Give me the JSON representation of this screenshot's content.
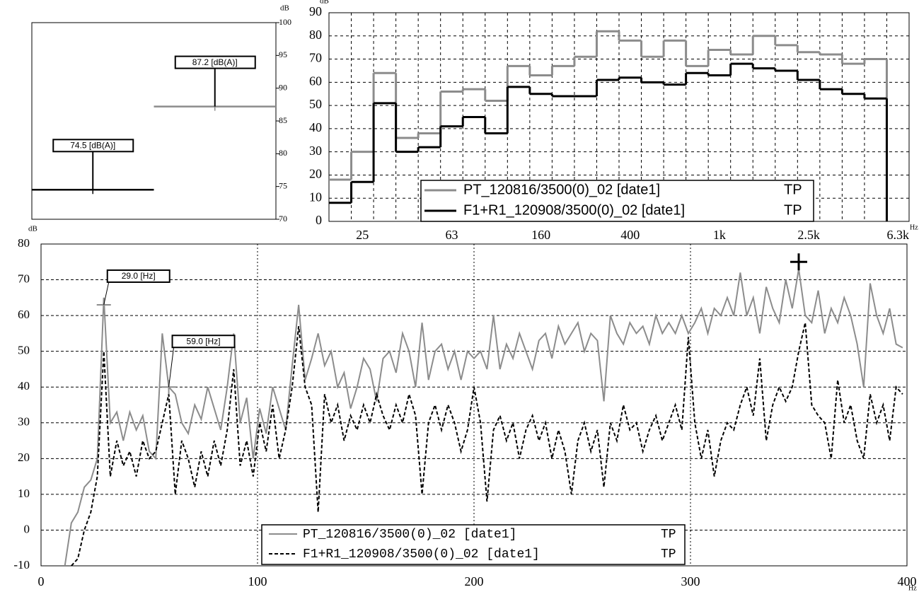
{
  "chart_data": [
    {
      "type": "level",
      "y_label": "dB",
      "ylim": [
        70,
        100
      ],
      "yticks": [
        70,
        75,
        80,
        85,
        90,
        95,
        100
      ],
      "values": [
        74.5,
        87.2
      ],
      "value_labels": [
        "74.5 [dB(A)]",
        "87.2 [dB(A)]"
      ],
      "colors": [
        "#000000",
        "#8c8c8c"
      ]
    },
    {
      "type": "step",
      "y_label": "dB",
      "x_label": "Hz",
      "categories": [
        null,
        "25",
        null,
        null,
        null,
        "63",
        null,
        null,
        null,
        "160",
        null,
        null,
        null,
        "400",
        null,
        null,
        null,
        "1k",
        null,
        null,
        null,
        "2.5k",
        null,
        null,
        null,
        "6.3k"
      ],
      "ylim": [
        0,
        90
      ],
      "yticks": [
        0,
        10,
        20,
        30,
        40,
        50,
        60,
        70,
        80,
        90
      ],
      "grid": true,
      "series": [
        {
          "name": "PT_120816/3500(0)_02 [date1]",
          "tag": "TP",
          "color": "#8c8c8c",
          "values": [
            18,
            30,
            64,
            36,
            38,
            56,
            57,
            52,
            67,
            63,
            67,
            71,
            82,
            78,
            71,
            78,
            67,
            74,
            72,
            80,
            76,
            73,
            72,
            68,
            70,
            null
          ]
        },
        {
          "name": "F1+R1_120908/3500(0)_02 [date1]",
          "tag": "TP",
          "color": "#000000",
          "values": [
            8,
            17,
            51,
            30,
            32,
            41,
            45,
            38,
            58,
            55,
            54,
            54,
            61,
            62,
            60,
            59,
            64,
            63,
            68,
            66,
            65,
            61,
            57,
            55,
            53,
            null
          ]
        }
      ]
    },
    {
      "type": "line",
      "y_label": "dB",
      "x_label": "Hz",
      "x": [
        11,
        14,
        17,
        20,
        23,
        26,
        29,
        32,
        35,
        38,
        41,
        44,
        47,
        50,
        53,
        56,
        59,
        62,
        65,
        68,
        71,
        74,
        77,
        80,
        83,
        86,
        89,
        92,
        95,
        98,
        101,
        104,
        107,
        110,
        113,
        116,
        119,
        122,
        125,
        128,
        131,
        134,
        137,
        140,
        143,
        146,
        149,
        152,
        155,
        158,
        161,
        164,
        167,
        170,
        173,
        176,
        179,
        182,
        185,
        188,
        191,
        194,
        197,
        200,
        203,
        206,
        209,
        212,
        215,
        218,
        221,
        224,
        227,
        230,
        233,
        236,
        239,
        242,
        245,
        248,
        251,
        254,
        257,
        260,
        263,
        266,
        269,
        272,
        275,
        278,
        281,
        284,
        287,
        290,
        293,
        296,
        299,
        302,
        305,
        308,
        311,
        314,
        317,
        320,
        323,
        326,
        329,
        332,
        335,
        338,
        341,
        344,
        347,
        350,
        353,
        356,
        359,
        362,
        365,
        368,
        371,
        374,
        377,
        380,
        383,
        386,
        389,
        392,
        395,
        398
      ],
      "xlim": [
        0,
        400
      ],
      "ylim": [
        -10,
        80
      ],
      "xticks": [
        0,
        100,
        200,
        300,
        400
      ],
      "yticks": [
        -10,
        0,
        10,
        20,
        30,
        40,
        50,
        60,
        70,
        80
      ],
      "grid": true,
      "series": [
        {
          "name": "PT_120816/3500(0)_02 [date1]",
          "tag": "TP",
          "color": "#8c8c8c",
          "line_style": "solid",
          "values": [
            -10,
            2,
            5,
            12,
            14,
            20,
            65,
            30,
            33,
            25,
            33,
            28,
            32,
            22,
            20,
            55,
            40,
            38,
            30,
            27,
            35,
            31,
            40,
            34,
            28,
            40,
            55,
            30,
            37,
            20,
            34,
            27,
            40,
            34,
            28,
            46,
            63,
            42,
            48,
            55,
            46,
            50,
            40,
            44,
            34,
            40,
            48,
            45,
            36,
            48,
            50,
            44,
            55,
            50,
            40,
            58,
            42,
            50,
            52,
            45,
            50,
            42,
            50,
            48,
            50,
            45,
            60,
            45,
            52,
            48,
            55,
            50,
            45,
            53,
            55,
            48,
            57,
            52,
            55,
            58,
            50,
            55,
            53,
            36,
            60,
            55,
            52,
            58,
            55,
            57,
            52,
            60,
            55,
            58,
            55,
            60,
            55,
            58,
            62,
            55,
            62,
            60,
            65,
            60,
            72,
            60,
            65,
            55,
            68,
            62,
            58,
            70,
            62,
            73,
            60,
            58,
            67,
            55,
            62,
            58,
            65,
            60,
            52,
            40,
            69,
            60,
            55,
            62,
            52,
            51
          ]
        },
        {
          "name": "F1+R1_120908/3500(0)_02 [date1]",
          "tag": "TP",
          "color": "#000000",
          "line_style": "dashed",
          "values": [
            null,
            -10,
            -8,
            0,
            5,
            15,
            50,
            15,
            25,
            18,
            22,
            15,
            25,
            20,
            22,
            30,
            38,
            10,
            25,
            20,
            12,
            22,
            15,
            25,
            18,
            28,
            45,
            18,
            25,
            15,
            30,
            22,
            35,
            20,
            28,
            40,
            57,
            40,
            35,
            5,
            38,
            30,
            35,
            25,
            32,
            28,
            35,
            30,
            38,
            32,
            28,
            35,
            30,
            38,
            32,
            10,
            30,
            35,
            28,
            35,
            30,
            22,
            28,
            40,
            30,
            8,
            28,
            32,
            25,
            30,
            20,
            28,
            32,
            25,
            30,
            20,
            28,
            22,
            10,
            25,
            30,
            22,
            28,
            12,
            30,
            25,
            35,
            28,
            30,
            22,
            28,
            32,
            25,
            30,
            35,
            28,
            54,
            30,
            20,
            28,
            15,
            25,
            30,
            28,
            35,
            40,
            32,
            48,
            25,
            35,
            40,
            36,
            40,
            50,
            58,
            35,
            32,
            30,
            20,
            42,
            30,
            35,
            25,
            20,
            38,
            30,
            35,
            25,
            40,
            38
          ]
        }
      ],
      "markers": [
        {
          "label": "29.0 [Hz]",
          "x": 29,
          "y": 63
        },
        {
          "label": "59.0 [Hz]",
          "x": 59,
          "y": 40
        }
      ],
      "cursor": {
        "x": 350,
        "y": 75
      }
    }
  ]
}
